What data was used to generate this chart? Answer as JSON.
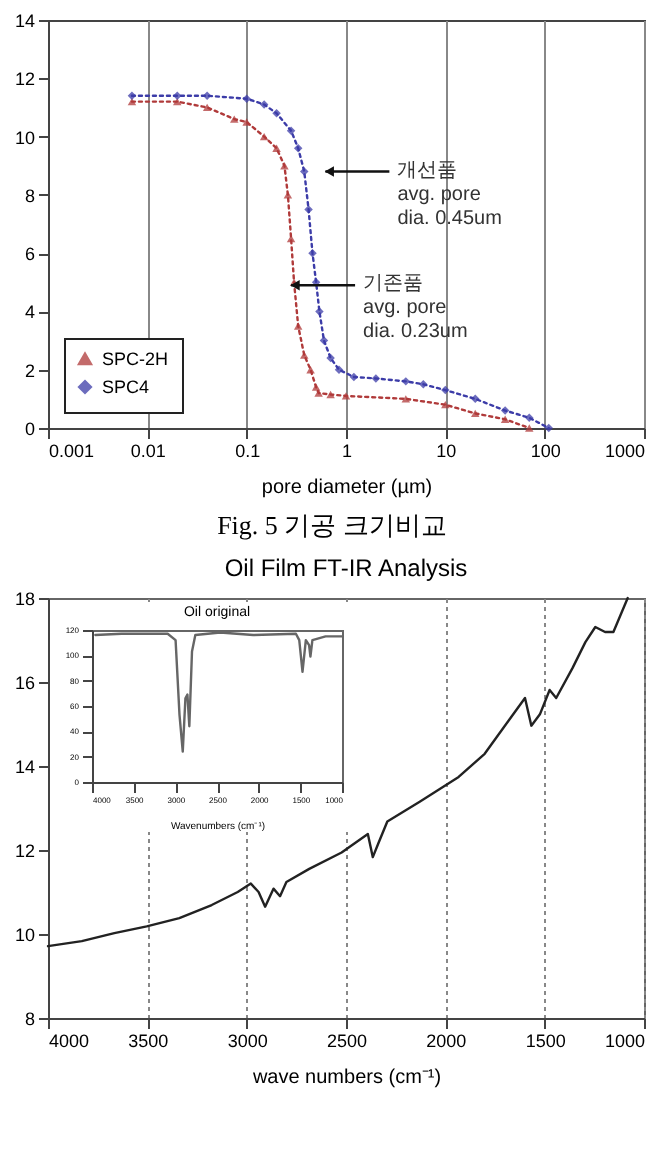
{
  "chart_data": [
    {
      "type": "line",
      "xlabel": "pore diameter (µm)",
      "log": "x",
      "grid": "x",
      "legend": "bottom left",
      "line_style": "dotted",
      "xlim": [
        0.001,
        1000
      ],
      "xticks": [
        0.001,
        0.01,
        0.1,
        1,
        10,
        100,
        1000
      ],
      "ylim": [
        0,
        14
      ],
      "yticks": [
        0,
        2,
        4,
        6,
        8,
        10,
        12,
        14
      ],
      "series": [
        {
          "name": "SPC-2H",
          "color": "#b03a3a",
          "marker": "triangle",
          "x": [
            0.007,
            0.02,
            0.04,
            0.075,
            0.1,
            0.15,
            0.2,
            0.24,
            0.26,
            0.28,
            0.3,
            0.33,
            0.38,
            0.44,
            0.5,
            0.53,
            0.7,
            1,
            4,
            10,
            20,
            40,
            70
          ],
          "values": [
            11.2,
            11.2,
            11.0,
            10.6,
            10.5,
            10.0,
            9.6,
            9.0,
            8.0,
            6.5,
            5.0,
            3.5,
            2.5,
            2.0,
            1.4,
            1.2,
            1.15,
            1.1,
            1.0,
            0.8,
            0.5,
            0.3,
            0.0
          ]
        },
        {
          "name": "SPC4",
          "color": "#3c3ca8",
          "marker": "diamond",
          "x": [
            0.007,
            0.02,
            0.04,
            0.1,
            0.15,
            0.2,
            0.28,
            0.33,
            0.38,
            0.42,
            0.46,
            0.5,
            0.54,
            0.6,
            0.7,
            0.85,
            1.2,
            2,
            4,
            6,
            10,
            20,
            40,
            70,
            110
          ],
          "values": [
            11.4,
            11.4,
            11.4,
            11.3,
            11.1,
            10.8,
            10.2,
            9.6,
            8.8,
            7.5,
            6.0,
            5.0,
            4.0,
            3.0,
            2.4,
            2.0,
            1.75,
            1.7,
            1.6,
            1.5,
            1.3,
            1.0,
            0.6,
            0.35,
            0.0
          ]
        }
      ],
      "annotations": [
        {
          "text": "개선품\navg. pore\ndia. 0.45um",
          "x": 0.62,
          "y": 8.8
        },
        {
          "text": "기존품\navg. pore\ndia. 0.23um",
          "x": 0.28,
          "y": 4.9
        },
        "Fig. 5 기공 크기비교"
      ]
    },
    {
      "type": "line",
      "title": "Oil Film FT-IR Analysis",
      "xlabel": "wave numbers (cm⁻¹)",
      "grid": "x",
      "xlim": [
        4000,
        1000
      ],
      "xticks": [
        4000,
        3500,
        3000,
        2500,
        2000,
        1500,
        1000
      ],
      "ylim": [
        8,
        18
      ],
      "yticks": [
        8,
        10,
        12,
        14,
        16,
        18
      ],
      "x": [
        4000,
        3830,
        3666,
        3503,
        3339,
        3176,
        3045,
        2979,
        2940,
        2907,
        2865,
        2832,
        2800,
        2685,
        2522,
        2390,
        2365,
        2338,
        2292,
        2129,
        1933,
        1802,
        1671,
        1599,
        1567,
        1524,
        1475,
        1442,
        1360,
        1295,
        1245,
        1196,
        1154,
        1082
      ],
      "series": [
        {
          "color": "#222222",
          "values": [
            9.71,
            9.83,
            10.02,
            10.18,
            10.38,
            10.69,
            11.0,
            11.2,
            11.0,
            10.65,
            11.08,
            10.9,
            11.24,
            11.55,
            11.94,
            12.38,
            11.83,
            12.15,
            12.68,
            13.15,
            13.74,
            14.29,
            15.15,
            15.62,
            14.96,
            15.23,
            15.81,
            15.62,
            16.33,
            16.95,
            17.31,
            17.19,
            17.19,
            18.0
          ]
        }
      ]
    },
    {
      "type": "line",
      "title": "Oil original",
      "xlabel": "Wavenumbers (cm⁻¹)",
      "grid": false,
      "xlim": [
        4000,
        1000
      ],
      "xticks": [
        4000,
        3500,
        3000,
        2500,
        2000,
        1500,
        1000
      ],
      "ylim": [
        0,
        120
      ],
      "yticks": [
        0,
        20,
        40,
        60,
        80,
        100,
        120
      ],
      "x": [
        3960,
        3645,
        3092,
        2997,
        2950,
        2911,
        2879,
        2855,
        2832,
        2800,
        2760,
        2461,
        2066,
        1553,
        1513,
        1474,
        1434,
        1395,
        1379,
        1355,
        1197,
        1000
      ],
      "series": [
        {
          "color": "#666666",
          "values": [
            116,
            117,
            117,
            112,
            53,
            24,
            66,
            69,
            44,
            103,
            116,
            118,
            116,
            117,
            112,
            87,
            112,
            108,
            99,
            112,
            115,
            115
          ]
        }
      ]
    }
  ]
}
